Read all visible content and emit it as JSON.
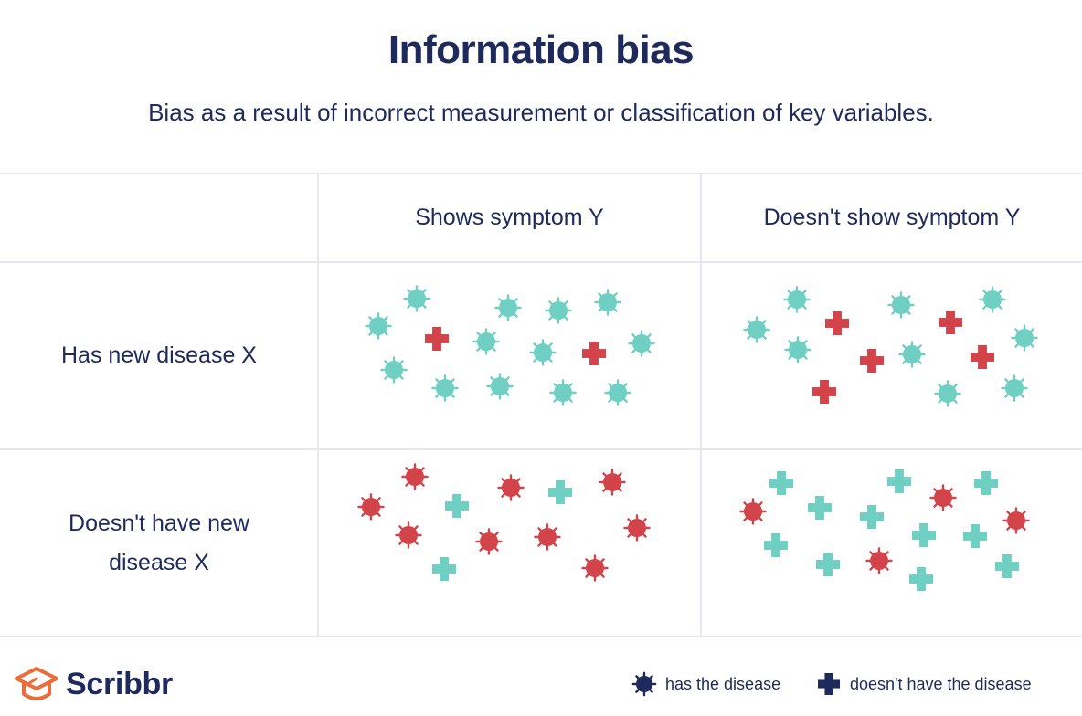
{
  "title": "Information bias",
  "subtitle": "Bias as a result of incorrect measurement or classification of key variables.",
  "columns": [
    "Shows symptom Y",
    "Doesn't show symptom Y"
  ],
  "rows": [
    {
      "line1": "Has new disease X",
      "line2": ""
    },
    {
      "line1": "Doesn't have new",
      "line2": "disease X"
    }
  ],
  "brand": "Scribbr",
  "legend": {
    "virus_label": "has the disease",
    "cross_label": "doesn't have the disease"
  },
  "icons": {
    "virus": "virus-icon",
    "cross": "cross-icon",
    "logo": "graduation-cap-icon"
  },
  "colors": {
    "teal": "#6fcfc2",
    "red": "#d2444a",
    "navy": "#1f2a5c",
    "logo_orange": "#ec6d3a"
  }
}
